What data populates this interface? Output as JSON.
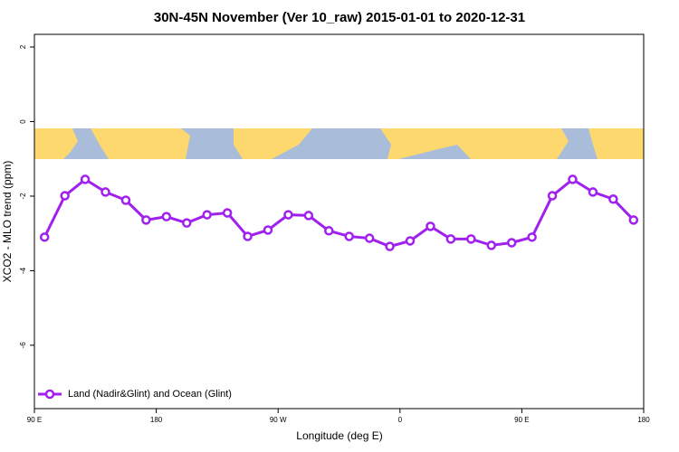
{
  "chart_data": {
    "type": "line",
    "title": "30N-45N November (Ver 10_raw)   2015-01-01 to 2020-12-31",
    "x_label": "Longitude (deg E)",
    "y_label": "XCO2 - MLO trend (ppm)",
    "xlim": [
      90,
      540
    ],
    "ylim": [
      -7.7,
      2.34
    ],
    "xticks": [
      {
        "value": 90,
        "label": "90 E"
      },
      180,
      {
        "value": 270,
        "label": "90 W"
      },
      {
        "value": 360,
        "label": "0"
      },
      {
        "value": 450,
        "label": "90 E"
      },
      {
        "value": 540,
        "label": "180"
      }
    ],
    "yticks": [
      2,
      0,
      -2,
      -4,
      -6
    ],
    "legend": "bottom-left",
    "x": [
      97.5,
      112.5,
      127.5,
      142.5,
      157.5,
      172.5,
      187.5,
      202.5,
      217.5,
      232.5,
      247.5,
      262.5,
      277.5,
      292.5,
      307.5,
      322.5,
      337.5,
      352.5,
      367.5,
      382.5,
      397.5,
      412.5,
      427.5,
      442.5,
      457.5,
      472.5,
      487.5,
      502.5,
      517.5,
      532.5
    ],
    "series": [
      {
        "name": "Land (Nadir&Glint) and Ocean (Glint)",
        "color": "#a020f0",
        "values": [
          -3.1,
          -1.99,
          -1.55,
          -1.89,
          -2.11,
          -2.64,
          -2.55,
          -2.72,
          -2.5,
          -2.45,
          -3.08,
          -2.91,
          -2.5,
          -2.52,
          -2.93,
          -3.08,
          -3.13,
          -3.35,
          -3.2,
          -2.81,
          -3.15,
          -3.15,
          -3.32,
          -3.25,
          -3.1,
          -1.99,
          -1.55,
          -1.89,
          -2.08,
          -2.64
        ]
      }
    ]
  }
}
